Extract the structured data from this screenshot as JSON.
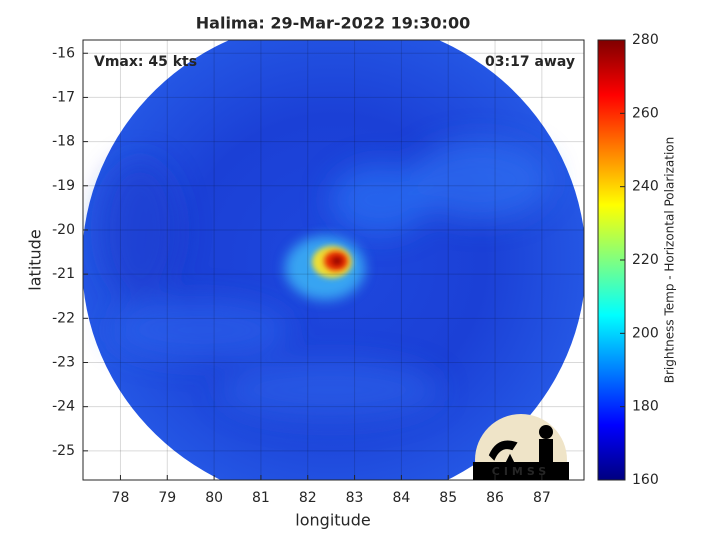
{
  "chart_data": {
    "type": "image_map",
    "title": "Halima: 29-Mar-2022 19:30:00",
    "x_label": "longitude",
    "y_label": "latitude",
    "xlim": [
      77.2,
      87.9
    ],
    "xticks": [
      78,
      79,
      80,
      81,
      82,
      83,
      84,
      85,
      86,
      87
    ],
    "ylim": [
      -25.66,
      -15.7
    ],
    "yticks": [
      -16,
      -17,
      -18,
      -19,
      -20,
      -21,
      -22,
      -23,
      -24,
      -25
    ],
    "grid": true,
    "colorbar": {
      "label": "Brightness Temp - Horizontal Polarization",
      "colormap": "jet",
      "lim": [
        160,
        280
      ],
      "ticks": [
        160,
        180,
        200,
        220,
        240,
        260,
        280
      ]
    },
    "annotations": {
      "vmax": "Vmax: 45 kts",
      "time_away": "03:17 away",
      "logo": "CIMSS"
    }
  }
}
